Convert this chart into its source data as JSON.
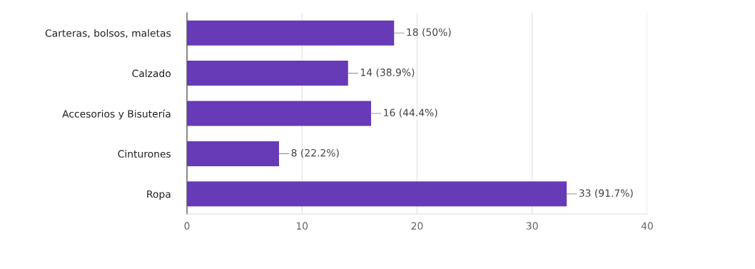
{
  "chart_data": {
    "type": "bar",
    "orientation": "horizontal",
    "categories": [
      "Carteras, bolsos, maletas",
      "Calzado",
      "Accesorios y Bisutería",
      "Cinturones",
      "Ropa"
    ],
    "values": [
      18,
      14,
      16,
      8,
      33
    ],
    "value_labels": [
      "18 (50%)",
      "14 (38.9%)",
      "16 (44.4%)",
      "8 (22.2%)",
      "33 (91.7%)"
    ],
    "color": "#673ab7",
    "xlim": [
      0,
      40
    ],
    "xticks": [
      0,
      10,
      20,
      30,
      40
    ],
    "grid": "x",
    "legend": false
  }
}
